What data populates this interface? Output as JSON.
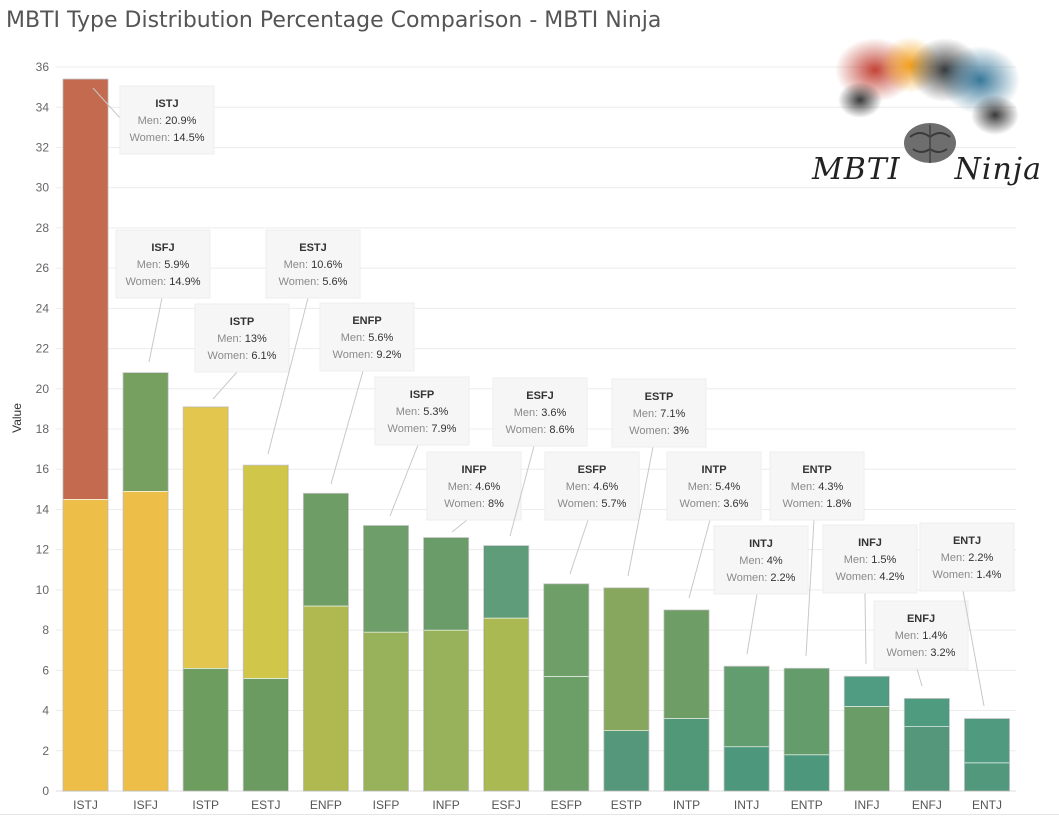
{
  "title": "MBTI Type Distribution Percentage Comparison - MBTI Ninja",
  "logo": {
    "word1": "MBTI",
    "word2": "Ninja",
    "icon": "smoke-brain-icon"
  },
  "chart_data": {
    "type": "bar",
    "stacked": true,
    "ylabel": "Value",
    "xlabel": "",
    "ylim": [
      0,
      36
    ],
    "yticks": [
      0,
      2,
      4,
      6,
      8,
      10,
      12,
      14,
      16,
      18,
      20,
      22,
      24,
      26,
      28,
      30,
      32,
      34,
      36
    ],
    "grid": true,
    "categories": [
      "ISTJ",
      "ISFJ",
      "ISTP",
      "ESTJ",
      "ENFP",
      "ISFP",
      "INFP",
      "ESFJ",
      "ESFP",
      "ESTP",
      "INTP",
      "INTJ",
      "ENTP",
      "INFJ",
      "ENFJ",
      "ENTJ"
    ],
    "series": [
      {
        "name": "Women",
        "values": [
          14.5,
          14.9,
          6.1,
          5.6,
          9.2,
          7.9,
          8,
          8.6,
          5.7,
          3,
          3.6,
          2.2,
          1.8,
          4.2,
          3.2,
          1.4
        ]
      },
      {
        "name": "Men",
        "values": [
          20.9,
          5.9,
          13,
          10.6,
          5.6,
          5.3,
          4.6,
          3.6,
          4.6,
          7.1,
          5.4,
          4,
          4.3,
          1.5,
          1.4,
          2.2
        ]
      }
    ],
    "annotation_labels": {
      "men": "Men:",
      "women": "Women:"
    },
    "annotations": [
      {
        "type": "ISTJ",
        "men": "20.9%",
        "women": "14.5%"
      },
      {
        "type": "ISFJ",
        "men": "5.9%",
        "women": "14.9%"
      },
      {
        "type": "ISTP",
        "men": "13%",
        "women": "6.1%"
      },
      {
        "type": "ESTJ",
        "men": "10.6%",
        "women": "5.6%"
      },
      {
        "type": "ENFP",
        "men": "5.6%",
        "women": "9.2%"
      },
      {
        "type": "ISFP",
        "men": "5.3%",
        "women": "7.9%"
      },
      {
        "type": "INFP",
        "men": "4.6%",
        "women": "8%"
      },
      {
        "type": "ESFJ",
        "men": "3.6%",
        "women": "8.6%"
      },
      {
        "type": "ESFP",
        "men": "4.6%",
        "women": "5.7%"
      },
      {
        "type": "ESTP",
        "men": "7.1%",
        "women": "3%"
      },
      {
        "type": "INTP",
        "men": "5.4%",
        "women": "3.6%"
      },
      {
        "type": "INTJ",
        "men": "4%",
        "women": "2.2%"
      },
      {
        "type": "ENTP",
        "men": "4.3%",
        "women": "1.8%"
      },
      {
        "type": "INFJ",
        "men": "1.5%",
        "women": "4.2%"
      },
      {
        "type": "ENFJ",
        "men": "1.4%",
        "women": "3.2%"
      },
      {
        "type": "ENTJ",
        "men": "2.2%",
        "women": "1.4%"
      }
    ],
    "colors": {
      "bottom": [
        "#EDBF49",
        "#EDBF49",
        "#6E9D60",
        "#6B9B60",
        "#AFB94F",
        "#98B25B",
        "#97B25A",
        "#ABB953",
        "#6C9F68",
        "#55977A",
        "#519879",
        "#4D987C",
        "#4D987C",
        "#6A9C67",
        "#54977B",
        "#52987C"
      ],
      "top": [
        "#C46A4F",
        "#75A060",
        "#E2C64E",
        "#CFC64A",
        "#6E9D66",
        "#6E9F6A",
        "#6A9C69",
        "#5F9C7A",
        "#6E9F68",
        "#87A65E",
        "#6E9D65",
        "#629D6F",
        "#649C6C",
        "#4F9C83",
        "#4E9B80",
        "#509A80"
      ]
    }
  }
}
